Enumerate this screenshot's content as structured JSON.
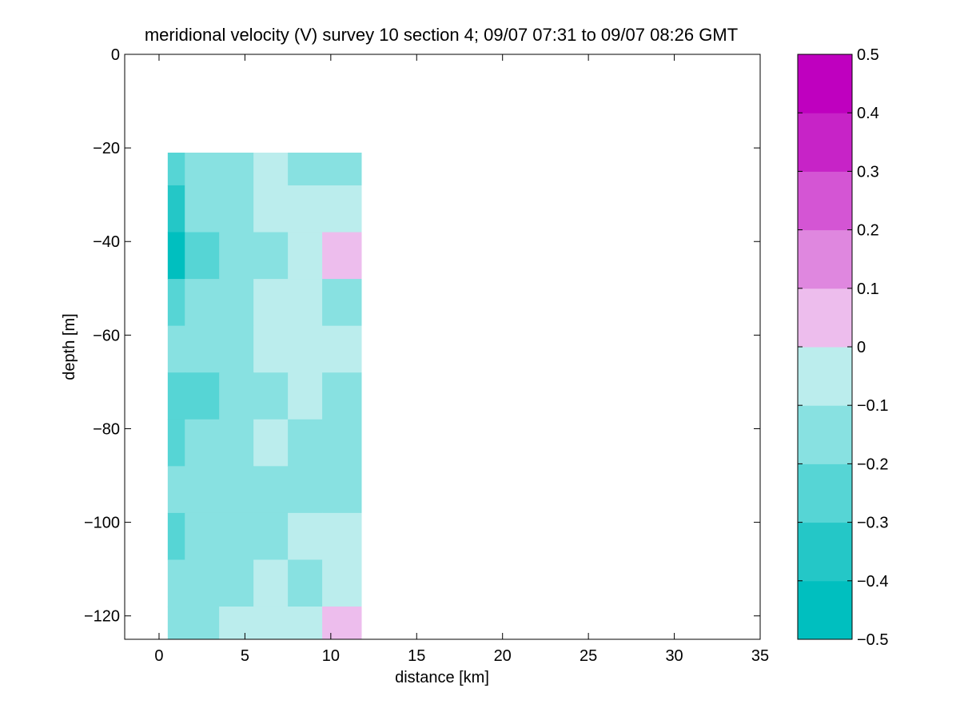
{
  "chart_data": {
    "type": "heatmap",
    "title": "meridional velocity (V) survey 10 section 4; 09/07 07:31 to 09/07 08:26 GMT",
    "xlabel": "distance [km]",
    "ylabel": "depth [m]",
    "xlim": [
      -2,
      35
    ],
    "ylim": [
      -125,
      0
    ],
    "xticks": [
      0,
      5,
      10,
      15,
      20,
      25,
      30,
      35
    ],
    "yticks": [
      0,
      -20,
      -40,
      -60,
      -80,
      -100,
      -120
    ],
    "x_tick_labels": [
      "0",
      "5",
      "10",
      "15",
      "20",
      "25",
      "30",
      "35"
    ],
    "y_tick_labels": [
      "0",
      "−20",
      "−40",
      "−60",
      "−80",
      "−100",
      "−120"
    ],
    "grid": false,
    "colorbar": {
      "levels": [
        -0.5,
        -0.4,
        -0.3,
        -0.2,
        -0.1,
        0,
        0.1,
        0.2,
        0.3,
        0.4,
        0.5
      ],
      "tick_labels": [
        "−0.5",
        "−0.4",
        "−0.3",
        "−0.2",
        "−0.1",
        "0",
        "0.1",
        "0.2",
        "0.3",
        "0.4",
        "0.5"
      ],
      "colors": [
        "#00bfbf",
        "#24c7c7",
        "#56d5d5",
        "#88e1e1",
        "#bbeded",
        "#edbded",
        "#df87df",
        "#d455d4",
        "#c723c7",
        "#bf00bf"
      ],
      "placement": "right"
    },
    "data_extent": {
      "x": [
        0.5,
        11.8
      ],
      "y": [
        -125,
        -21
      ]
    },
    "x": [
      0.5,
      2.5,
      4.5,
      6.5,
      8.5,
      10.5
    ],
    "y": [
      -23,
      -33,
      -43,
      -53,
      -63,
      -73,
      -83,
      -93,
      -103,
      -113,
      -123
    ],
    "z": [
      [
        -0.25,
        -0.15,
        -0.12,
        -0.05,
        -0.15,
        -0.2
      ],
      [
        -0.35,
        -0.2,
        -0.15,
        -0.1,
        -0.05,
        -0.1
      ],
      [
        -0.42,
        -0.25,
        -0.15,
        -0.12,
        -0.05,
        0.05
      ],
      [
        -0.3,
        -0.2,
        -0.15,
        -0.1,
        -0.05,
        -0.15
      ],
      [
        -0.2,
        -0.15,
        -0.15,
        -0.1,
        -0.05,
        -0.05
      ],
      [
        -0.25,
        -0.25,
        -0.15,
        -0.12,
        -0.05,
        -0.15
      ],
      [
        -0.3,
        -0.2,
        -0.15,
        -0.05,
        -0.15,
        -0.15
      ],
      [
        -0.15,
        -0.15,
        -0.15,
        -0.2,
        -0.15,
        -0.15
      ],
      [
        -0.25,
        -0.15,
        -0.15,
        -0.15,
        -0.05,
        -0.05
      ],
      [
        -0.15,
        -0.15,
        -0.15,
        -0.05,
        -0.15,
        -0.05
      ],
      [
        -0.15,
        -0.15,
        -0.05,
        -0.05,
        -0.05,
        0.05
      ]
    ]
  }
}
